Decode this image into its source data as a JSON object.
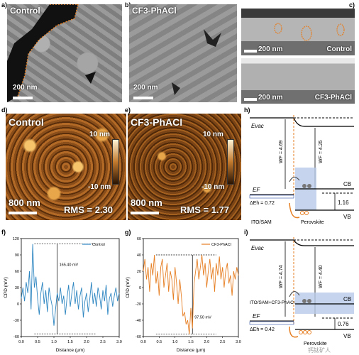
{
  "panels": {
    "a": {
      "label": "a)",
      "title": "Control",
      "scale": "200 nm"
    },
    "b": {
      "label": "b)",
      "title": "CF3-PhACl",
      "scale": "200 nm"
    },
    "c": {
      "label": "c)",
      "top_scale": "200 nm",
      "top_name": "Control",
      "bottom_scale": "200 nm",
      "bottom_name": "CF3-PhACl"
    },
    "d": {
      "label": "d)",
      "title": "Control",
      "scale": "800 nm",
      "rms": "RMS = 2.30",
      "cbar_top": "10 nm",
      "cbar_bottom": "-10 nm"
    },
    "e": {
      "label": "e)",
      "title": "CF3-PhACl",
      "scale": "800 nm",
      "rms": "RMS = 1.77",
      "cbar_top": "10 nm",
      "cbar_bottom": "-10 nm"
    },
    "h": {
      "label": "h)",
      "evac": "Evac",
      "wf_left": "WF = 4.69",
      "wf_right": "WF = 4.25",
      "cb": "CB",
      "vb": "VB",
      "ef": "EF",
      "gap": "1.16",
      "delta": "ΔEh = 0.72",
      "left_name": "ITO/SAM",
      "right_name": "Perovskite"
    },
    "i": {
      "label": "i)",
      "evac": "Evac",
      "wf_left": "WF = 4.74",
      "wf_right": "WF = 4.40",
      "cb": "CB",
      "vb": "VB",
      "ef": "EF",
      "gap": "0.76",
      "delta": "ΔEh = 0.42",
      "left_name": "ITO/SAM+CF3-PhACl",
      "right_name": "Perovskite",
      "watermark": "钙钛矿人"
    }
  },
  "chart_data": [
    {
      "type": "line",
      "panel_label": "f)",
      "xlabel": "Distance (μm)",
      "ylabel": "CPD (mV)",
      "xlim": [
        0,
        3.0
      ],
      "ylim": [
        -60,
        120
      ],
      "xticks": [
        "0.0",
        "0.5",
        "1.0",
        "1.5",
        "2.0",
        "2.5",
        "3.0"
      ],
      "yticks": [
        "-60",
        "-30",
        "0",
        "30",
        "60",
        "90",
        "120"
      ],
      "legend": "Control",
      "color": "#2e86c1",
      "annotation": "165.40 mV",
      "ref_high": 110,
      "ref_low": -55,
      "x": [
        0.0,
        0.05,
        0.1,
        0.15,
        0.2,
        0.25,
        0.3,
        0.35,
        0.4,
        0.45,
        0.5,
        0.55,
        0.6,
        0.65,
        0.7,
        0.75,
        0.8,
        0.85,
        0.9,
        0.95,
        1.0,
        1.05,
        1.1,
        1.15,
        1.2,
        1.25,
        1.3,
        1.35,
        1.4,
        1.45,
        1.5,
        1.55,
        1.6,
        1.65,
        1.7,
        1.75,
        1.8,
        1.85,
        1.9,
        1.95,
        2.0,
        2.05,
        2.1,
        2.15,
        2.2,
        2.25,
        2.3,
        2.35,
        2.4,
        2.45,
        2.5,
        2.55,
        2.6,
        2.65,
        2.7,
        2.75,
        2.8,
        2.85,
        2.9,
        2.95,
        3.0
      ],
      "y": [
        10,
        30,
        5,
        40,
        20,
        60,
        -10,
        110,
        30,
        50,
        10,
        -20,
        20,
        40,
        0,
        25,
        -15,
        30,
        10,
        -5,
        -40,
        -10,
        20,
        5,
        30,
        0,
        15,
        -20,
        10,
        35,
        -5,
        20,
        40,
        0,
        25,
        -10,
        15,
        30,
        -25,
        5,
        20,
        -15,
        10,
        40,
        0,
        20,
        -5,
        30,
        15,
        -10,
        25,
        5,
        35,
        -20,
        10,
        20,
        -5,
        15,
        30,
        5,
        20
      ]
    },
    {
      "type": "line",
      "panel_label": "g)",
      "xlabel": "Distance (μm)",
      "ylabel": "CPD (mV)",
      "xlim": [
        0,
        3.0
      ],
      "ylim": [
        -60,
        60
      ],
      "xticks": [
        "0.0",
        "0.5",
        "1.0",
        "1.5",
        "2.0",
        "2.5",
        "3.0"
      ],
      "yticks": [
        "-60",
        "-40",
        "-20",
        "0",
        "20",
        "40",
        "60"
      ],
      "legend": "CF3-PhACl",
      "color": "#e67e22",
      "annotation": "97.50 mV",
      "ref_high": 40,
      "ref_low": -57,
      "x": [
        0.0,
        0.05,
        0.1,
        0.15,
        0.2,
        0.25,
        0.3,
        0.35,
        0.4,
        0.45,
        0.5,
        0.55,
        0.6,
        0.65,
        0.7,
        0.75,
        0.8,
        0.85,
        0.9,
        0.95,
        1.0,
        1.05,
        1.1,
        1.15,
        1.2,
        1.25,
        1.3,
        1.35,
        1.4,
        1.45,
        1.5,
        1.55,
        1.6,
        1.65,
        1.7,
        1.75,
        1.8,
        1.85,
        1.9,
        1.95,
        2.0,
        2.05,
        2.1,
        2.15,
        2.2,
        2.25,
        2.3,
        2.35,
        2.4,
        2.45,
        2.5,
        2.55,
        2.6,
        2.65,
        2.7,
        2.75,
        2.8,
        2.85,
        2.9,
        2.95,
        3.0
      ],
      "y": [
        20,
        35,
        10,
        25,
        -5,
        30,
        15,
        40,
        5,
        20,
        -10,
        25,
        35,
        0,
        15,
        30,
        -5,
        20,
        10,
        -15,
        25,
        5,
        -20,
        10,
        -10,
        -35,
        -30,
        -45,
        -40,
        -57,
        -25,
        -50,
        5,
        20,
        35,
        10,
        25,
        40,
        15,
        30,
        0,
        20,
        35,
        10,
        25,
        -5,
        30,
        15,
        38,
        10,
        25,
        0,
        20,
        30,
        5,
        15,
        -10,
        20,
        10,
        25,
        15
      ]
    }
  ]
}
